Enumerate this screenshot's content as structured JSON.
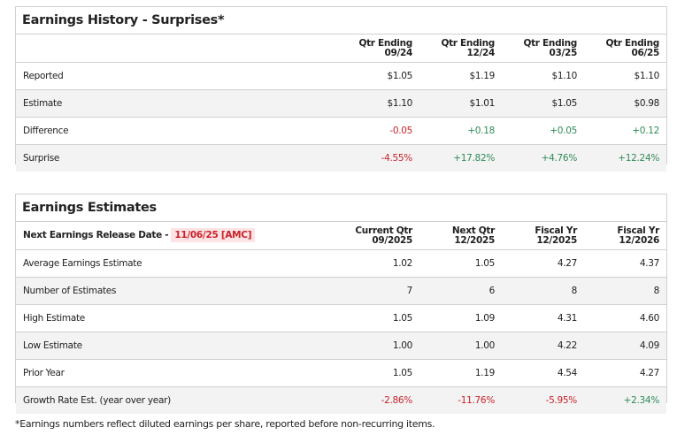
{
  "history": {
    "title": "Earnings History - Surprises*",
    "columns": [
      [
        "Qtr Ending",
        "09/24"
      ],
      [
        "Qtr Ending",
        "12/24"
      ],
      [
        "Qtr Ending",
        "03/25"
      ],
      [
        "Qtr Ending",
        "06/25"
      ]
    ],
    "rows": [
      {
        "label": "Reported",
        "values": [
          "$1.05",
          "$1.19",
          "$1.10",
          "$1.10"
        ]
      },
      {
        "label": "Estimate",
        "values": [
          "$1.10",
          "$1.01",
          "$1.05",
          "$0.98"
        ]
      },
      {
        "label": "Difference",
        "values": [
          "-0.05",
          "+0.18",
          "+0.05",
          "+0.12"
        ]
      },
      {
        "label": "Surprise",
        "values": [
          "-4.55%",
          "+17.82%",
          "+4.76%",
          "+12.24%"
        ]
      }
    ]
  },
  "estimates": {
    "title": "Earnings Estimates",
    "release_label": "Next Earnings Release Date -",
    "release_date": "11/06/25 [AMC]",
    "columns": [
      [
        "Current Qtr",
        "09/2025"
      ],
      [
        "Next Qtr",
        "12/2025"
      ],
      [
        "Fiscal Yr",
        "12/2025"
      ],
      [
        "Fiscal Yr",
        "12/2026"
      ]
    ],
    "rows": [
      {
        "label": "Average Earnings Estimate",
        "values": [
          "1.02",
          "1.05",
          "4.27",
          "4.37"
        ]
      },
      {
        "label": "Number of Estimates",
        "values": [
          "7",
          "6",
          "8",
          "8"
        ]
      },
      {
        "label": "High Estimate",
        "values": [
          "1.05",
          "1.09",
          "4.31",
          "4.60"
        ]
      },
      {
        "label": "Low Estimate",
        "values": [
          "1.00",
          "1.00",
          "4.22",
          "4.09"
        ]
      },
      {
        "label": "Prior Year",
        "values": [
          "1.05",
          "1.19",
          "4.54",
          "4.27"
        ]
      },
      {
        "label": "Growth Rate Est. (year over year)",
        "values": [
          "-2.86%",
          "-11.76%",
          "-5.95%",
          "+2.34%"
        ]
      }
    ]
  },
  "footnote": "*Earnings numbers reflect diluted earnings per share, reported before non-recurring items.",
  "colors": {
    "negative": "#c8232c",
    "positive": "#2f8a57"
  }
}
